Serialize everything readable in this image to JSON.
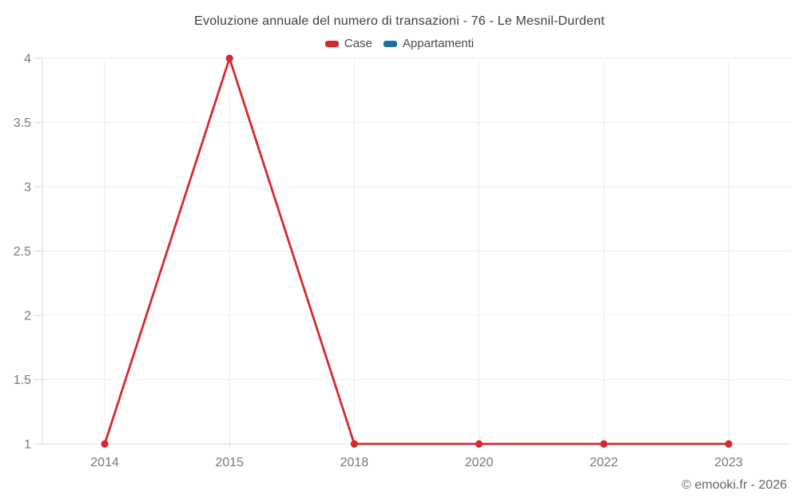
{
  "chart_data": {
    "type": "line",
    "title": "Evoluzione annuale del numero di transazioni - 76 - Le Mesnil-Durdent",
    "categories": [
      "2014",
      "2015",
      "2018",
      "2020",
      "2022",
      "2023"
    ],
    "series": [
      {
        "name": "Case",
        "color": "#d5292d",
        "values": [
          1,
          4,
          1,
          1,
          1,
          1
        ]
      },
      {
        "name": "Appartamenti",
        "color": "#1c6ea4",
        "values": []
      }
    ],
    "yticks": [
      1,
      1.5,
      2,
      2.5,
      3,
      3.5,
      4
    ],
    "ylim": [
      1,
      4
    ],
    "xlabel": "",
    "ylabel": "",
    "grid": true,
    "legend_position": "top",
    "grid_color": "#ececec",
    "axis_color": "#d9d9d9",
    "tick_label_color": "#76787a"
  },
  "footer": {
    "copyright": "© emooki.fr - 2026"
  }
}
